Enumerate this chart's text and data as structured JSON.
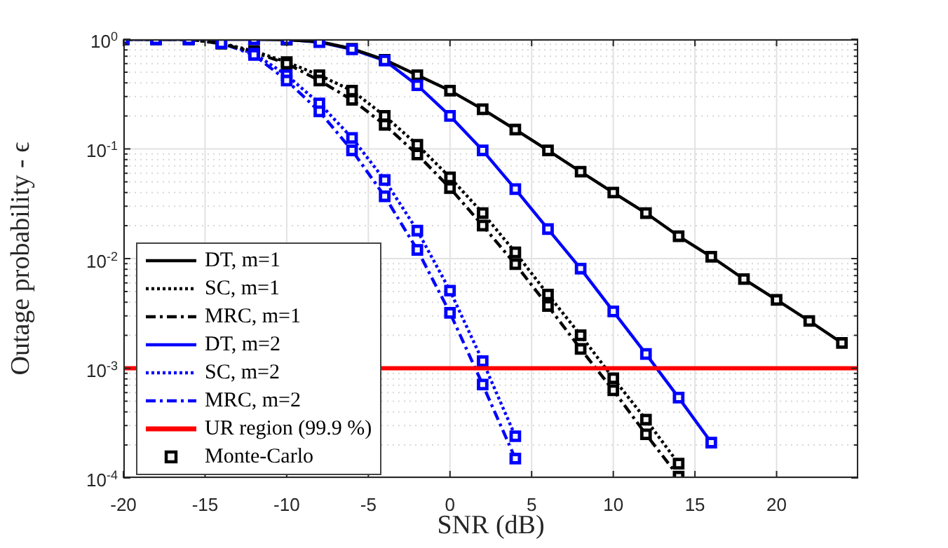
{
  "chart_data": {
    "type": "line",
    "xlabel": "SNR (dB)",
    "ylabel": "Outage probability - ϵ",
    "log": true,
    "grid": true,
    "legend": "bottom left",
    "x": [
      -20,
      -18,
      -16,
      -14,
      -12,
      -10,
      -8,
      -6,
      -4,
      -2,
      0,
      2,
      4,
      6,
      8,
      10,
      12,
      14,
      16,
      18,
      20,
      22,
      24
    ],
    "xlim": [
      -20,
      25
    ],
    "xticks": [
      -20,
      -15,
      -10,
      -5,
      0,
      5,
      10,
      15,
      20
    ],
    "ylim": [
      0.0001,
      1
    ],
    "yticks": [
      {
        "value": 0.0001,
        "label": "10$^{-4}$"
      },
      {
        "value": 0.0002,
        "label": null
      },
      {
        "value": 0.0003,
        "label": null
      },
      {
        "value": 0.0004,
        "label": null
      },
      {
        "value": 0.0005,
        "label": null
      },
      {
        "value": 0.0006,
        "label": null
      },
      {
        "value": 0.0007,
        "label": null
      },
      {
        "value": 0.0008,
        "label": null
      },
      {
        "value": 0.0009,
        "label": null
      },
      {
        "value": 0.001,
        "label": "10$^{-3}$"
      },
      {
        "value": 0.002,
        "label": null
      },
      {
        "value": 0.003,
        "label": null
      },
      {
        "value": 0.004,
        "label": null
      },
      {
        "value": 0.005,
        "label": null
      },
      {
        "value": 0.006,
        "label": null
      },
      {
        "value": 0.007,
        "label": null
      },
      {
        "value": 0.008,
        "label": null
      },
      {
        "value": 0.009,
        "label": null
      },
      {
        "value": 0.01,
        "label": "10$^{-2}$"
      },
      {
        "value": 0.02,
        "label": null
      },
      {
        "value": 0.03,
        "label": null
      },
      {
        "value": 0.04,
        "label": null
      },
      {
        "value": 0.05,
        "label": null
      },
      {
        "value": 0.06,
        "label": null
      },
      {
        "value": 0.07,
        "label": null
      },
      {
        "value": 0.08,
        "label": null
      },
      {
        "value": 0.09,
        "label": null
      },
      {
        "value": 0.1,
        "label": "10$^{-1}$"
      },
      {
        "value": 0.2,
        "label": null
      },
      {
        "value": 0.3,
        "label": null
      },
      {
        "value": 0.4,
        "label": null
      },
      {
        "value": 0.5,
        "label": null
      },
      {
        "value": 0.6,
        "label": null
      },
      {
        "value": 0.7,
        "label": null
      },
      {
        "value": 0.8,
        "label": null
      },
      {
        "value": 0.9,
        "label": null
      },
      {
        "value": 1,
        "label": "10$^{0}$"
      }
    ],
    "series": [
      {
        "name": "DT, m=1",
        "color": "#000000",
        "line_style": "solid",
        "values": [
          1,
          1,
          1,
          1,
          1,
          0.99,
          0.95,
          0.82,
          0.65,
          0.47,
          0.34,
          0.23,
          0.15,
          0.097,
          0.062,
          0.04,
          0.026,
          0.016,
          0.0104,
          0.0065,
          0.0042,
          0.0027,
          0.0017
        ]
      },
      {
        "name": "SC, m=1",
        "color": "#000000",
        "line_style": "dotted",
        "values": [
          1,
          1,
          1,
          0.92,
          0.78,
          0.62,
          0.47,
          0.34,
          0.2,
          0.109,
          0.055,
          0.026,
          0.0114,
          0.0047,
          0.002,
          0.00081,
          0.00034,
          0.000135,
          null,
          null,
          null,
          null,
          null
        ]
      },
      {
        "name": "MRC, m=1",
        "color": "#000000",
        "line_style": "dashed",
        "values": [
          1,
          1,
          1,
          0.91,
          0.76,
          0.6,
          0.42,
          0.28,
          0.166,
          0.089,
          0.044,
          0.02,
          0.0089,
          0.0037,
          0.0015,
          0.00063,
          0.00025,
          0.000103,
          null,
          null,
          null,
          null,
          null
        ]
      },
      {
        "name": "DT, m=2",
        "color": "#0000ff",
        "line_style": "solid",
        "values": [
          1,
          1,
          1,
          1,
          1,
          1,
          0.94,
          0.81,
          0.64,
          0.38,
          0.2,
          0.097,
          0.043,
          0.0186,
          0.0081,
          0.0033,
          0.00135,
          0.00054,
          0.00021,
          null,
          null,
          null,
          null
        ]
      },
      {
        "name": "SC, m=2",
        "color": "#0000ff",
        "line_style": "dotted",
        "values": [
          1,
          1,
          1,
          0.93,
          0.74,
          0.47,
          0.26,
          0.126,
          0.052,
          0.018,
          0.0051,
          0.00116,
          0.00024,
          null,
          null,
          null,
          null,
          null,
          null,
          null,
          null,
          null,
          null
        ]
      },
      {
        "name": "MRC, m=2",
        "color": "#0000ff",
        "line_style": "dashed",
        "values": [
          1,
          1,
          1,
          0.92,
          0.72,
          0.42,
          0.22,
          0.097,
          0.037,
          0.012,
          0.0032,
          0.00071,
          0.00015,
          null,
          null,
          null,
          null,
          null,
          null,
          null,
          null,
          null,
          null
        ]
      },
      {
        "name": "Monte-Carlo",
        "type": "scatter",
        "marker": "square",
        "x": [
          -20,
          -18,
          -16,
          -14,
          -12,
          -10,
          -8,
          -6,
          -4,
          -2,
          0,
          2,
          4,
          6,
          8,
          10,
          12,
          14,
          16,
          18,
          20,
          22,
          24,
          -20,
          -18,
          -16,
          -14,
          -12,
          -10,
          -8,
          -6,
          -4,
          -2,
          0,
          2,
          4,
          6,
          8,
          10,
          12,
          14,
          -20,
          -18,
          -16,
          -14,
          -12,
          -10,
          -8,
          -6,
          -4,
          -2,
          0,
          2,
          4,
          6,
          8,
          10,
          12,
          14,
          -20,
          -18,
          -16,
          -14,
          -12,
          -10,
          -8,
          -6,
          -4,
          -2,
          0,
          2,
          4,
          6,
          8,
          10,
          12,
          14,
          16,
          -20,
          -18,
          -16,
          -14,
          -12,
          -10,
          -8,
          -6,
          -4,
          -2,
          0,
          2,
          4,
          -20,
          -18,
          -16,
          -14,
          -12,
          -10,
          -8,
          -6,
          -4,
          -2,
          0,
          2,
          4
        ],
        "values": [
          1,
          1,
          1,
          null,
          1,
          0.99,
          0.95,
          0.82,
          0.65,
          0.47,
          0.34,
          0.23,
          0.15,
          0.097,
          0.062,
          0.04,
          0.026,
          0.016,
          0.0104,
          0.0065,
          0.0042,
          0.0027,
          0.0017,
          1,
          1,
          1,
          0.92,
          0.78,
          0.62,
          0.47,
          0.34,
          0.2,
          0.109,
          0.055,
          0.026,
          0.0114,
          0.0047,
          0.002,
          0.00081,
          0.00034,
          0.000135,
          1,
          1,
          1,
          0.91,
          0.76,
          0.6,
          0.42,
          0.28,
          0.166,
          0.089,
          0.044,
          0.02,
          0.0089,
          0.0037,
          0.0015,
          0.00063,
          0.00025,
          0.000103,
          1,
          1,
          1,
          1,
          1,
          1,
          0.94,
          0.81,
          0.64,
          0.38,
          0.2,
          0.097,
          0.043,
          0.0186,
          0.0081,
          0.0033,
          0.00135,
          0.00054,
          0.00021,
          1,
          1,
          1,
          0.93,
          0.74,
          0.47,
          0.26,
          0.126,
          0.052,
          0.018,
          0.0051,
          0.00116,
          0.00024,
          1,
          1,
          1,
          0.92,
          0.72,
          0.42,
          0.22,
          0.097,
          0.037,
          0.012,
          0.0032,
          0.00071,
          0.00015
        ],
        "colors": [
          "#000000",
          "#000000",
          "#000000",
          "#000000",
          "#000000",
          "#000000",
          "#000000",
          "#000000",
          "#000000",
          "#000000",
          "#000000",
          "#000000",
          "#000000",
          "#000000",
          "#000000",
          "#000000",
          "#000000",
          "#000000",
          "#000000",
          "#000000",
          "#000000",
          "#000000",
          "#000000",
          "#000000",
          "#000000",
          "#000000",
          "#000000",
          "#000000",
          "#000000",
          "#000000",
          "#000000",
          "#000000",
          "#000000",
          "#000000",
          "#000000",
          "#000000",
          "#000000",
          "#000000",
          "#000000",
          "#000000",
          "#000000",
          "#000000",
          "#000000",
          "#000000",
          "#000000",
          "#000000",
          "#000000",
          "#000000",
          "#000000",
          "#000000",
          "#000000",
          "#000000",
          "#000000",
          "#000000",
          "#000000",
          "#000000",
          "#000000",
          "#000000",
          "#000000",
          "#0000ff",
          "#0000ff",
          "#0000ff",
          "#0000ff",
          "#0000ff",
          "#0000ff",
          "#0000ff",
          "#0000ff",
          "#0000ff",
          "#0000ff",
          "#0000ff",
          "#0000ff",
          "#0000ff",
          "#0000ff",
          "#0000ff",
          "#0000ff",
          "#0000ff",
          "#0000ff",
          "#0000ff",
          "#0000ff",
          "#0000ff",
          "#0000ff",
          "#0000ff",
          "#0000ff",
          "#0000ff",
          "#0000ff",
          "#0000ff",
          "#0000ff",
          "#0000ff",
          "#0000ff",
          "#0000ff",
          "#0000ff",
          "#0000ff",
          "#0000ff",
          "#0000ff",
          "#0000ff",
          "#0000ff",
          "#0000ff",
          "#0000ff",
          "#0000ff",
          "#0000ff",
          "#0000ff",
          "#0000ff",
          "#0000ff",
          "#0000ff"
        ]
      }
    ],
    "ref_lines": [
      {
        "axis": "y",
        "value": 0.001,
        "label": "UR region (99.9 %)",
        "color": "#ff0000"
      }
    ]
  }
}
